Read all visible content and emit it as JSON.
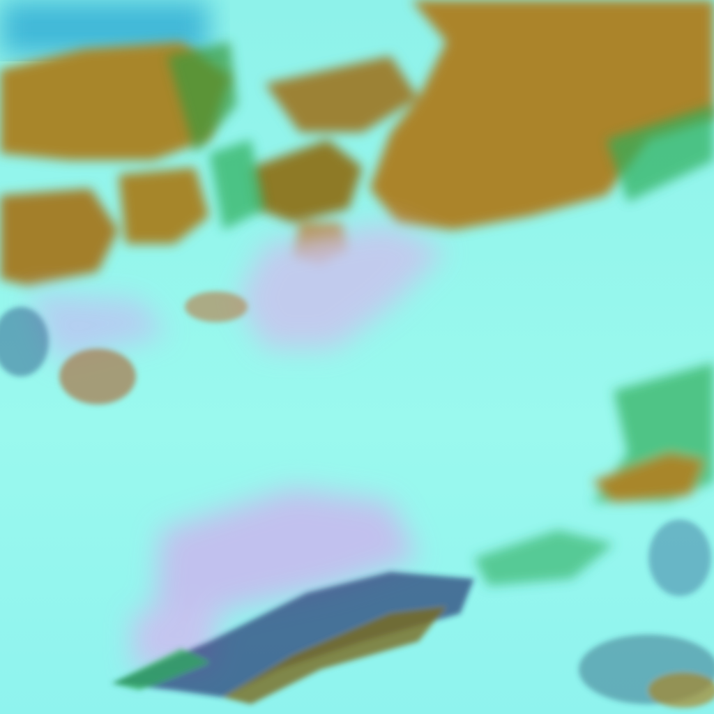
{
  "image": {
    "kind": "false-color satellite view",
    "colors": {
      "cloud_cyan": "#8ff7ec",
      "cloud_pale": "#c8fbf4",
      "high_cloud_lavender": "#c9b8ee",
      "land_brown": "#a8862a",
      "land_dark": "#7a6a1e",
      "vegetation_green": "#2fae5a",
      "shadow_navy": "#1d2a6a",
      "sea_blue": "#3fb8d8"
    }
  }
}
